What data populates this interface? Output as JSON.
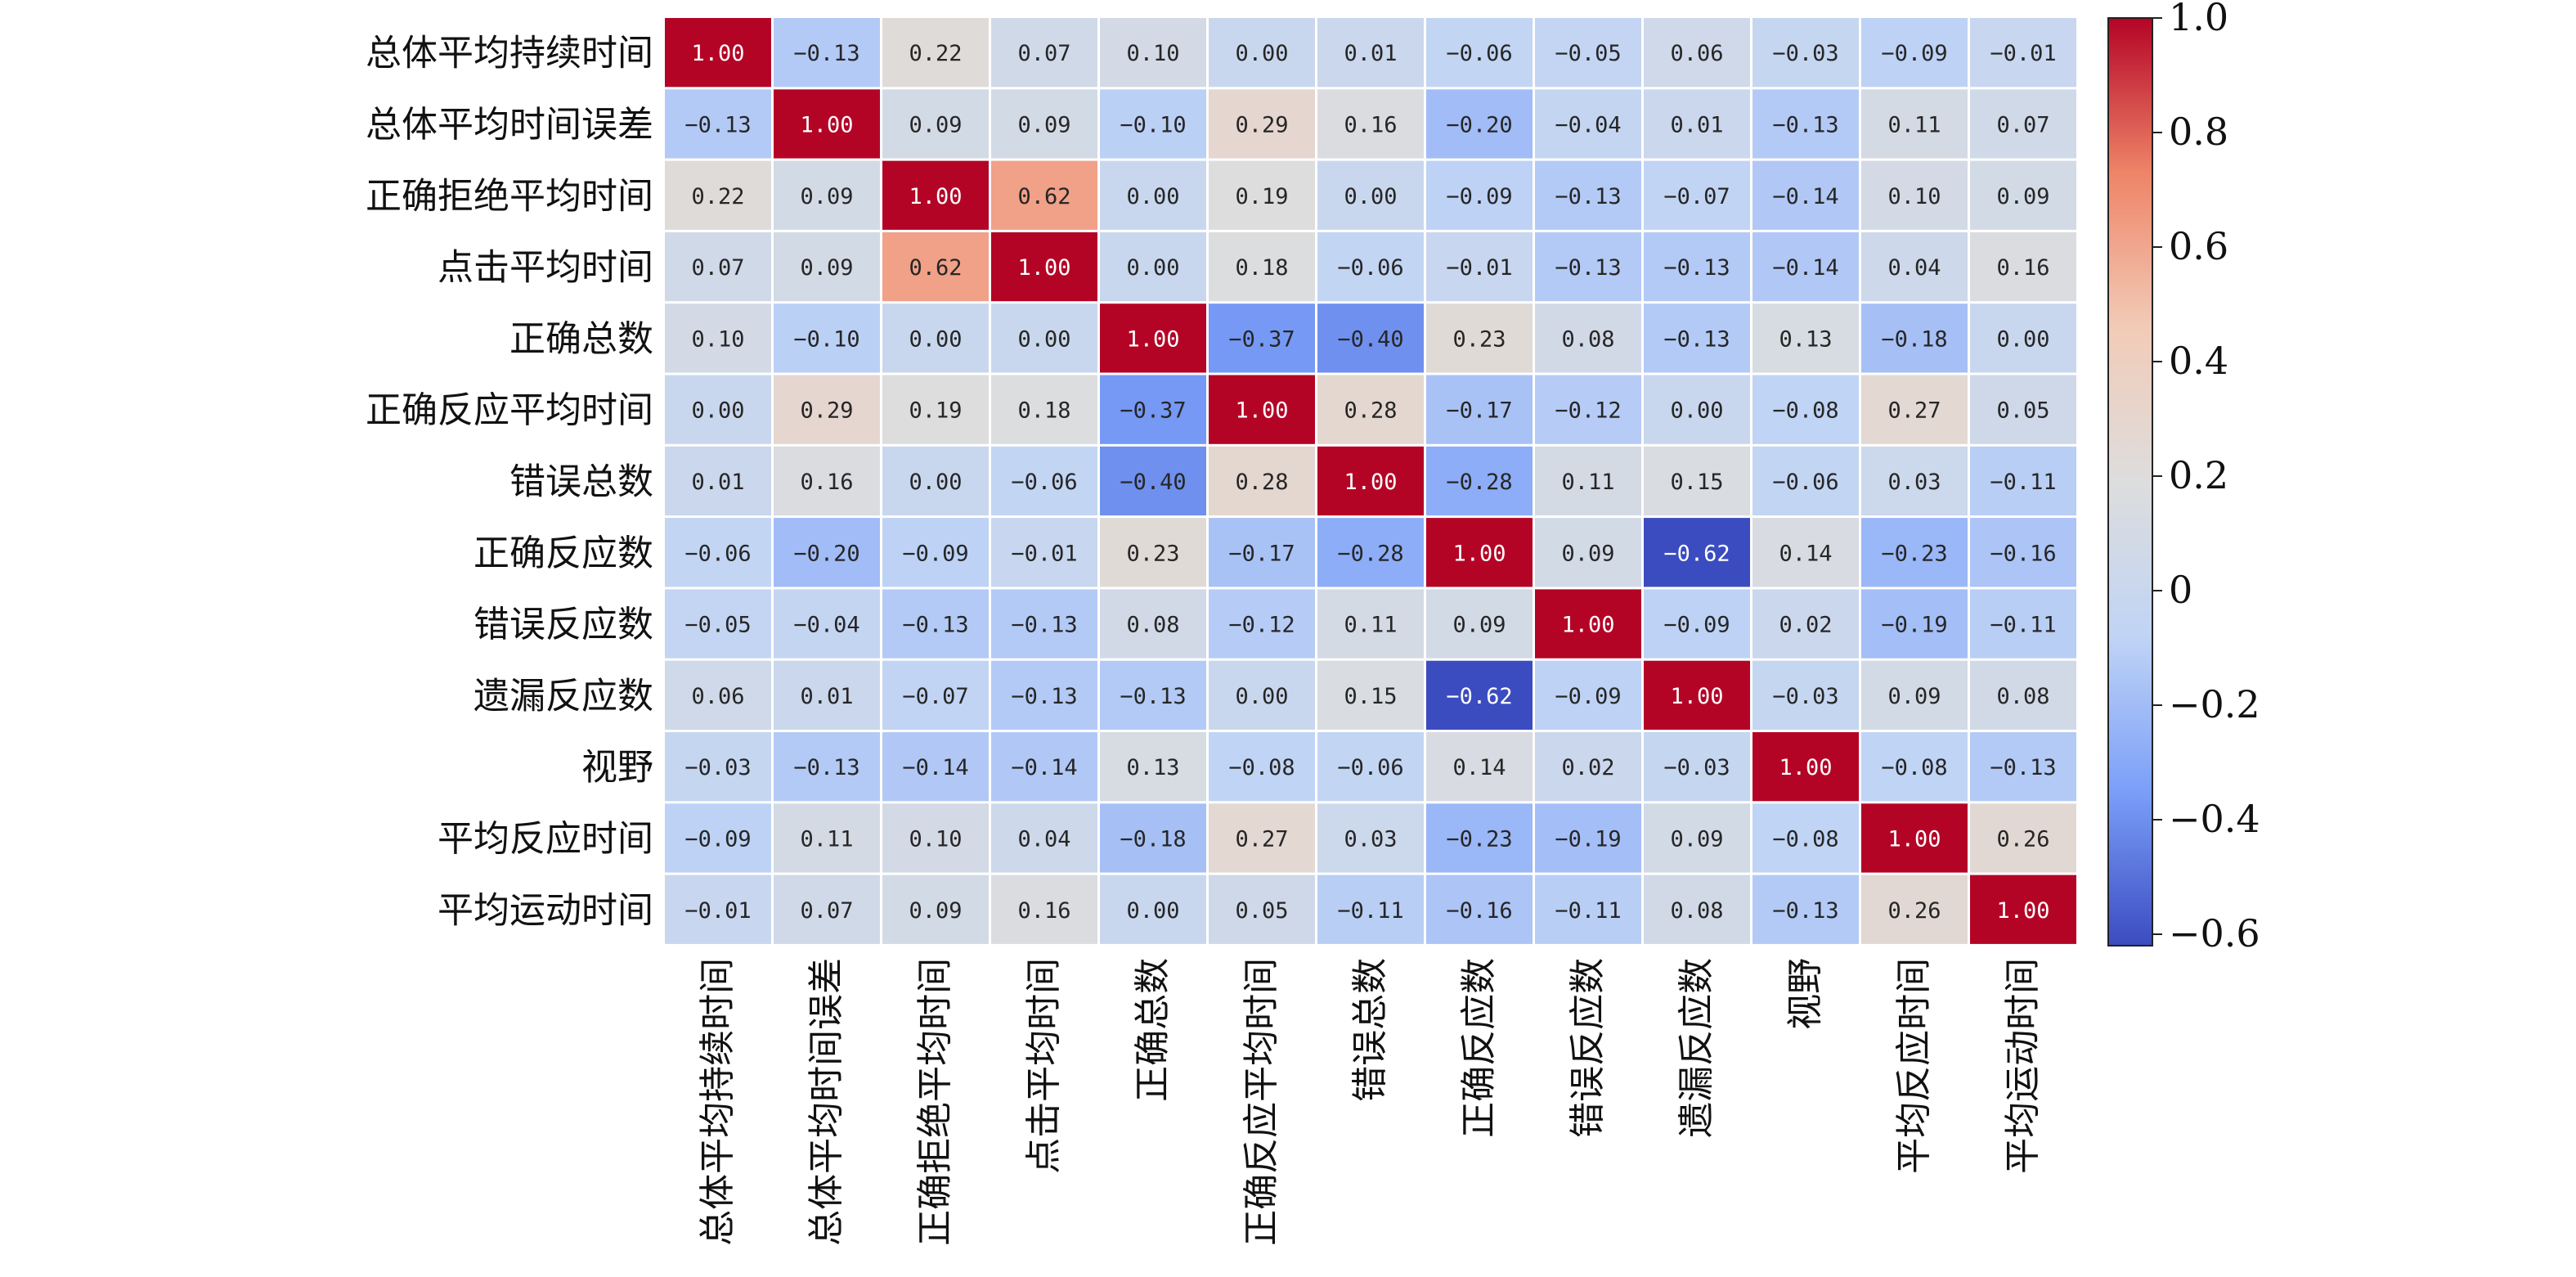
{
  "chart_data": {
    "type": "heatmap",
    "title": "",
    "xlabel": "",
    "ylabel": "",
    "labels": [
      "总体平均持续时间",
      "总体平均时间误差",
      "正确拒绝平均时间",
      "点击平均时间",
      "正确总数",
      "正确反应平均时间",
      "错误总数",
      "正确反应数",
      "错误反应数",
      "遗漏反应数",
      "视野",
      "平均反应时间",
      "平均运动时间"
    ],
    "values": [
      [
        1.0,
        -0.13,
        0.22,
        0.07,
        0.1,
        0.0,
        0.01,
        -0.06,
        -0.05,
        0.06,
        -0.03,
        -0.09,
        -0.01
      ],
      [
        -0.13,
        1.0,
        0.09,
        0.09,
        -0.1,
        0.29,
        0.16,
        -0.2,
        -0.04,
        0.01,
        -0.13,
        0.11,
        0.07
      ],
      [
        0.22,
        0.09,
        1.0,
        0.62,
        -0.0,
        0.19,
        -0.0,
        -0.09,
        -0.13,
        -0.07,
        -0.14,
        0.1,
        0.09
      ],
      [
        0.07,
        0.09,
        0.62,
        1.0,
        0.0,
        0.18,
        -0.06,
        -0.01,
        -0.13,
        -0.13,
        -0.14,
        0.04,
        0.16
      ],
      [
        0.1,
        -0.1,
        -0.0,
        0.0,
        1.0,
        -0.37,
        -0.4,
        0.23,
        0.08,
        -0.13,
        0.13,
        -0.18,
        -0.0
      ],
      [
        0.0,
        0.29,
        0.19,
        0.18,
        -0.37,
        1.0,
        0.28,
        -0.17,
        -0.12,
        0.0,
        -0.08,
        0.27,
        0.05
      ],
      [
        0.01,
        0.16,
        -0.0,
        -0.06,
        -0.4,
        0.28,
        1.0,
        -0.28,
        0.11,
        0.15,
        -0.06,
        0.03,
        -0.11
      ],
      [
        -0.06,
        -0.2,
        -0.09,
        -0.01,
        0.23,
        -0.17,
        -0.28,
        1.0,
        0.09,
        -0.62,
        0.14,
        -0.23,
        -0.16
      ],
      [
        -0.05,
        -0.04,
        -0.13,
        -0.13,
        0.08,
        -0.12,
        0.11,
        0.09,
        1.0,
        -0.09,
        0.02,
        -0.19,
        -0.11
      ],
      [
        0.06,
        0.01,
        -0.07,
        -0.13,
        -0.13,
        0.0,
        0.15,
        -0.62,
        -0.09,
        1.0,
        -0.03,
        0.09,
        0.08
      ],
      [
        -0.03,
        -0.13,
        -0.14,
        -0.14,
        0.13,
        -0.08,
        -0.06,
        0.14,
        0.02,
        -0.03,
        1.0,
        -0.08,
        -0.13
      ],
      [
        -0.09,
        0.11,
        0.1,
        0.04,
        -0.18,
        0.27,
        0.03,
        -0.23,
        -0.19,
        0.09,
        -0.08,
        1.0,
        0.26
      ],
      [
        -0.01,
        0.07,
        0.09,
        0.16,
        -0.0,
        0.05,
        -0.11,
        -0.16,
        -0.11,
        0.08,
        -0.13,
        0.26,
        1.0
      ]
    ],
    "value_format": "2 decimals",
    "colorscale": "coolwarm",
    "colorscale_stops": [
      "#3b4cc0",
      "#7b9ff9",
      "#c0d4f5",
      "#dddddd",
      "#f2cbb7",
      "#ee8468",
      "#b40426"
    ],
    "range": [
      -0.62,
      1.0
    ],
    "colorbar_ticks": [
      {
        "value": 1.0,
        "label": "1.0"
      },
      {
        "value": 0.8,
        "label": "0.8"
      },
      {
        "value": 0.6,
        "label": "0.6"
      },
      {
        "value": 0.4,
        "label": "0.4"
      },
      {
        "value": 0.2,
        "label": "0.2"
      },
      {
        "value": 0.0,
        "label": "0"
      },
      {
        "value": -0.2,
        "label": "−0.2"
      },
      {
        "value": -0.4,
        "label": "−0.4"
      },
      {
        "value": -0.6,
        "label": "−0.6"
      }
    ],
    "colorbar_position": "right",
    "grid": "white cell borders"
  }
}
